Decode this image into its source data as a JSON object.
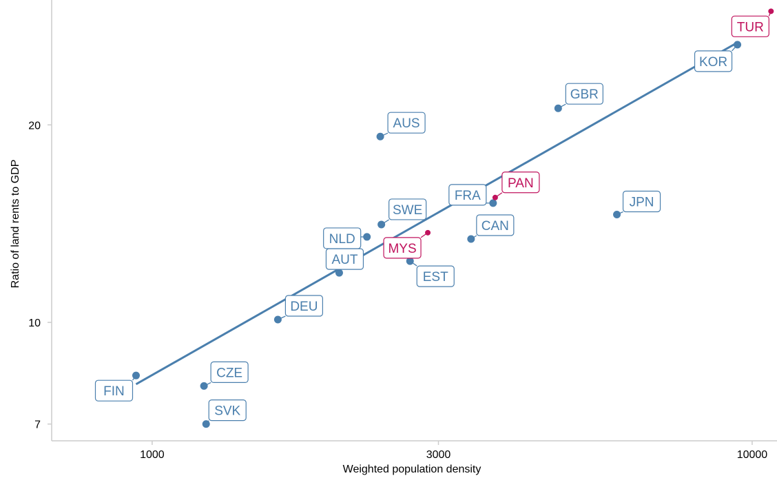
{
  "chart_data": {
    "type": "scatter",
    "xlabel": "Weighted population density",
    "ylabel": "Ratio of land rents to GDP",
    "x_scale": "log",
    "y_scale": "log",
    "xlim": [
      680,
      11000
    ],
    "ylim": [
      6.6,
      31
    ],
    "x_ticks": [
      1000,
      3000,
      10000
    ],
    "x_tick_labels": [
      "1000",
      "3000",
      "10000"
    ],
    "y_ticks": [
      7,
      10,
      20
    ],
    "y_tick_labels": [
      "7",
      "10",
      "20"
    ],
    "grid": false,
    "colors": {
      "oecd": "#4a7fad",
      "highlight": "#c0135d",
      "fit_line": "#4a7fad"
    },
    "points": [
      {
        "label": "FIN",
        "x": 940,
        "y": 8.3,
        "group": "oecd"
      },
      {
        "label": "CZE",
        "x": 1220,
        "y": 8.0,
        "group": "oecd"
      },
      {
        "label": "SVK",
        "x": 1230,
        "y": 7.0,
        "group": "oecd"
      },
      {
        "label": "DEU",
        "x": 1620,
        "y": 10.1,
        "group": "oecd"
      },
      {
        "label": "AUT",
        "x": 2050,
        "y": 11.9,
        "group": "oecd"
      },
      {
        "label": "NLD",
        "x": 2280,
        "y": 13.5,
        "group": "oecd"
      },
      {
        "label": "AUS",
        "x": 2400,
        "y": 19.2,
        "group": "oecd"
      },
      {
        "label": "SWE",
        "x": 2410,
        "y": 14.1,
        "group": "oecd"
      },
      {
        "label": "EST",
        "x": 2690,
        "y": 12.4,
        "group": "oecd"
      },
      {
        "label": "CAN",
        "x": 3400,
        "y": 13.4,
        "group": "oecd"
      },
      {
        "label": "FRA",
        "x": 3700,
        "y": 15.2,
        "group": "oecd"
      },
      {
        "label": "GBR",
        "x": 4750,
        "y": 21.2,
        "group": "oecd"
      },
      {
        "label": "JPN",
        "x": 5950,
        "y": 14.6,
        "group": "oecd"
      },
      {
        "label": "KOR",
        "x": 9450,
        "y": 26.5,
        "group": "oecd"
      },
      {
        "label": "MYS",
        "x": 2880,
        "y": 13.7,
        "group": "highlight"
      },
      {
        "label": "PAN",
        "x": 3730,
        "y": 15.5,
        "group": "highlight"
      },
      {
        "label": "TUR",
        "x": 10750,
        "y": 29.8,
        "group": "highlight"
      }
    ],
    "fit_line": {
      "x": [
        940,
        9450
      ],
      "y": [
        8.05,
        26.7
      ]
    }
  }
}
